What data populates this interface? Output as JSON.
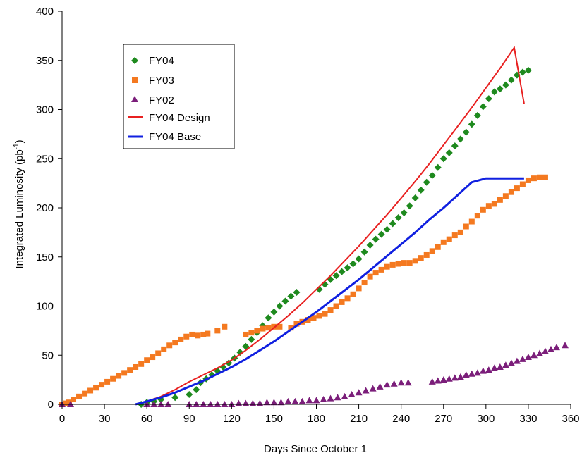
{
  "chart_data": {
    "type": "scatter",
    "xlabel": "Days Since October 1",
    "ylabel_main": "Integrated Luminosity (pb",
    "ylabel_sup": "-1",
    "ylabel_close": ")",
    "xlim": [
      0,
      360
    ],
    "ylim": [
      0,
      400
    ],
    "xticks": [
      0,
      30,
      60,
      90,
      120,
      150,
      180,
      210,
      240,
      270,
      300,
      330,
      360
    ],
    "yticks": [
      0,
      50,
      100,
      150,
      200,
      250,
      300,
      350,
      400
    ],
    "grid": false,
    "legend_position": "top-left",
    "series": [
      {
        "name": "FY04",
        "kind": "markers",
        "marker": "diamond",
        "color": "#1e8a1e",
        "points": [
          [
            56,
            0
          ],
          [
            60,
            2
          ],
          [
            65,
            3
          ],
          [
            70,
            5
          ],
          [
            80,
            7
          ],
          [
            90,
            10
          ],
          [
            95,
            15
          ],
          [
            98,
            22
          ],
          [
            102,
            26
          ],
          [
            106,
            30
          ],
          [
            110,
            34
          ],
          [
            114,
            38
          ],
          [
            118,
            42
          ],
          [
            122,
            47
          ],
          [
            126,
            53
          ],
          [
            130,
            59
          ],
          [
            134,
            66
          ],
          [
            138,
            73
          ],
          [
            142,
            80
          ],
          [
            146,
            88
          ],
          [
            150,
            94
          ],
          [
            154,
            100
          ],
          [
            158,
            105
          ],
          [
            162,
            110
          ],
          [
            166,
            114
          ],
          [
            182,
            117
          ],
          [
            186,
            122
          ],
          [
            190,
            127
          ],
          [
            194,
            131
          ],
          [
            198,
            135
          ],
          [
            202,
            139
          ],
          [
            206,
            143
          ],
          [
            210,
            148
          ],
          [
            214,
            155
          ],
          [
            218,
            162
          ],
          [
            222,
            168
          ],
          [
            226,
            173
          ],
          [
            230,
            178
          ],
          [
            234,
            184
          ],
          [
            238,
            190
          ],
          [
            242,
            195
          ],
          [
            246,
            202
          ],
          [
            250,
            210
          ],
          [
            254,
            218
          ],
          [
            258,
            226
          ],
          [
            262,
            233
          ],
          [
            266,
            241
          ],
          [
            270,
            250
          ],
          [
            274,
            256
          ],
          [
            278,
            263
          ],
          [
            282,
            270
          ],
          [
            286,
            277
          ],
          [
            290,
            285
          ],
          [
            294,
            294
          ],
          [
            298,
            303
          ],
          [
            302,
            311
          ],
          [
            306,
            318
          ],
          [
            310,
            321
          ],
          [
            314,
            325
          ],
          [
            318,
            330
          ],
          [
            322,
            335
          ],
          [
            326,
            338
          ],
          [
            330,
            340
          ]
        ]
      },
      {
        "name": "FY03",
        "kind": "markers",
        "marker": "square",
        "color": "#f47920",
        "points": [
          [
            0,
            0
          ],
          [
            3,
            1
          ],
          [
            5,
            2
          ],
          [
            8,
            5
          ],
          [
            12,
            8
          ],
          [
            16,
            11
          ],
          [
            20,
            14
          ],
          [
            24,
            17
          ],
          [
            28,
            20
          ],
          [
            32,
            23
          ],
          [
            36,
            26
          ],
          [
            40,
            29
          ],
          [
            44,
            32
          ],
          [
            48,
            35
          ],
          [
            52,
            38
          ],
          [
            56,
            41
          ],
          [
            60,
            45
          ],
          [
            64,
            48
          ],
          [
            68,
            52
          ],
          [
            72,
            56
          ],
          [
            76,
            60
          ],
          [
            80,
            63
          ],
          [
            84,
            66
          ],
          [
            88,
            69
          ],
          [
            92,
            71
          ],
          [
            96,
            70
          ],
          [
            100,
            71
          ],
          [
            103,
            72
          ],
          [
            110,
            75
          ],
          [
            115,
            79
          ],
          [
            130,
            71
          ],
          [
            134,
            73
          ],
          [
            138,
            75
          ],
          [
            142,
            77
          ],
          [
            146,
            78
          ],
          [
            150,
            79
          ],
          [
            154,
            79
          ],
          [
            162,
            78
          ],
          [
            166,
            82
          ],
          [
            170,
            84
          ],
          [
            174,
            86
          ],
          [
            178,
            88
          ],
          [
            182,
            90
          ],
          [
            186,
            92
          ],
          [
            190,
            96
          ],
          [
            194,
            100
          ],
          [
            198,
            104
          ],
          [
            202,
            108
          ],
          [
            206,
            112
          ],
          [
            210,
            118
          ],
          [
            214,
            124
          ],
          [
            218,
            130
          ],
          [
            222,
            134
          ],
          [
            226,
            137
          ],
          [
            230,
            140
          ],
          [
            234,
            142
          ],
          [
            238,
            143
          ],
          [
            242,
            144
          ],
          [
            246,
            144
          ],
          [
            250,
            146
          ],
          [
            254,
            149
          ],
          [
            258,
            152
          ],
          [
            262,
            156
          ],
          [
            266,
            160
          ],
          [
            270,
            165
          ],
          [
            274,
            168
          ],
          [
            278,
            172
          ],
          [
            282,
            175
          ],
          [
            286,
            181
          ],
          [
            290,
            186
          ],
          [
            294,
            192
          ],
          [
            298,
            198
          ],
          [
            302,
            202
          ],
          [
            306,
            204
          ],
          [
            310,
            208
          ],
          [
            314,
            212
          ],
          [
            318,
            216
          ],
          [
            322,
            220
          ],
          [
            326,
            224
          ],
          [
            330,
            228
          ],
          [
            334,
            230
          ],
          [
            338,
            231
          ],
          [
            342,
            231
          ]
        ]
      },
      {
        "name": "FY02",
        "kind": "markers",
        "marker": "triangle",
        "color": "#7b1e7a",
        "points": [
          [
            0,
            0
          ],
          [
            6,
            0
          ],
          [
            60,
            0
          ],
          [
            65,
            0
          ],
          [
            70,
            0
          ],
          [
            75,
            0
          ],
          [
            90,
            0
          ],
          [
            95,
            0
          ],
          [
            100,
            0
          ],
          [
            105,
            0
          ],
          [
            110,
            0
          ],
          [
            115,
            0
          ],
          [
            120,
            0
          ],
          [
            125,
            1
          ],
          [
            130,
            1
          ],
          [
            135,
            1
          ],
          [
            140,
            1
          ],
          [
            145,
            2
          ],
          [
            150,
            2
          ],
          [
            155,
            2
          ],
          [
            160,
            3
          ],
          [
            165,
            3
          ],
          [
            170,
            3
          ],
          [
            175,
            4
          ],
          [
            180,
            4
          ],
          [
            185,
            5
          ],
          [
            190,
            6
          ],
          [
            195,
            7
          ],
          [
            200,
            8
          ],
          [
            205,
            10
          ],
          [
            210,
            12
          ],
          [
            215,
            14
          ],
          [
            220,
            16
          ],
          [
            225,
            18
          ],
          [
            230,
            20
          ],
          [
            235,
            21
          ],
          [
            240,
            22
          ],
          [
            245,
            22
          ],
          [
            262,
            23
          ],
          [
            266,
            24
          ],
          [
            270,
            25
          ],
          [
            274,
            26
          ],
          [
            278,
            27
          ],
          [
            282,
            28
          ],
          [
            286,
            30
          ],
          [
            290,
            31
          ],
          [
            294,
            32
          ],
          [
            298,
            34
          ],
          [
            302,
            35
          ],
          [
            306,
            37
          ],
          [
            310,
            38
          ],
          [
            314,
            40
          ],
          [
            318,
            42
          ],
          [
            322,
            44
          ],
          [
            326,
            46
          ],
          [
            330,
            48
          ],
          [
            334,
            50
          ],
          [
            338,
            52
          ],
          [
            342,
            54
          ],
          [
            346,
            56
          ],
          [
            350,
            58
          ],
          [
            356,
            60
          ]
        ]
      },
      {
        "name": "FY04 Design",
        "kind": "line",
        "color": "#e82020",
        "points": [
          [
            52,
            0
          ],
          [
            60,
            3
          ],
          [
            70,
            8
          ],
          [
            80,
            15
          ],
          [
            90,
            23
          ],
          [
            100,
            30
          ],
          [
            110,
            37
          ],
          [
            120,
            45
          ],
          [
            130,
            55
          ],
          [
            140,
            66
          ],
          [
            150,
            78
          ],
          [
            160,
            90
          ],
          [
            170,
            103
          ],
          [
            180,
            117
          ],
          [
            190,
            131
          ],
          [
            200,
            146
          ],
          [
            210,
            161
          ],
          [
            220,
            177
          ],
          [
            230,
            193
          ],
          [
            240,
            210
          ],
          [
            250,
            227
          ],
          [
            260,
            245
          ],
          [
            270,
            264
          ],
          [
            280,
            283
          ],
          [
            290,
            302
          ],
          [
            300,
            322
          ],
          [
            310,
            342
          ],
          [
            320,
            363
          ],
          [
            327,
            306
          ]
        ]
      },
      {
        "name": "FY04 Base",
        "kind": "line",
        "color": "#1020e0",
        "points": [
          [
            52,
            0
          ],
          [
            60,
            3
          ],
          [
            70,
            7
          ],
          [
            80,
            12
          ],
          [
            90,
            18
          ],
          [
            100,
            24
          ],
          [
            110,
            31
          ],
          [
            120,
            38
          ],
          [
            130,
            46
          ],
          [
            140,
            55
          ],
          [
            150,
            64
          ],
          [
            160,
            74
          ],
          [
            170,
            84
          ],
          [
            180,
            94
          ],
          [
            190,
            105
          ],
          [
            200,
            116
          ],
          [
            210,
            127
          ],
          [
            220,
            139
          ],
          [
            230,
            151
          ],
          [
            240,
            163
          ],
          [
            250,
            175
          ],
          [
            260,
            188
          ],
          [
            270,
            200
          ],
          [
            280,
            213
          ],
          [
            290,
            226
          ],
          [
            300,
            230
          ],
          [
            310,
            230
          ],
          [
            320,
            230
          ],
          [
            327,
            230
          ]
        ]
      }
    ]
  }
}
